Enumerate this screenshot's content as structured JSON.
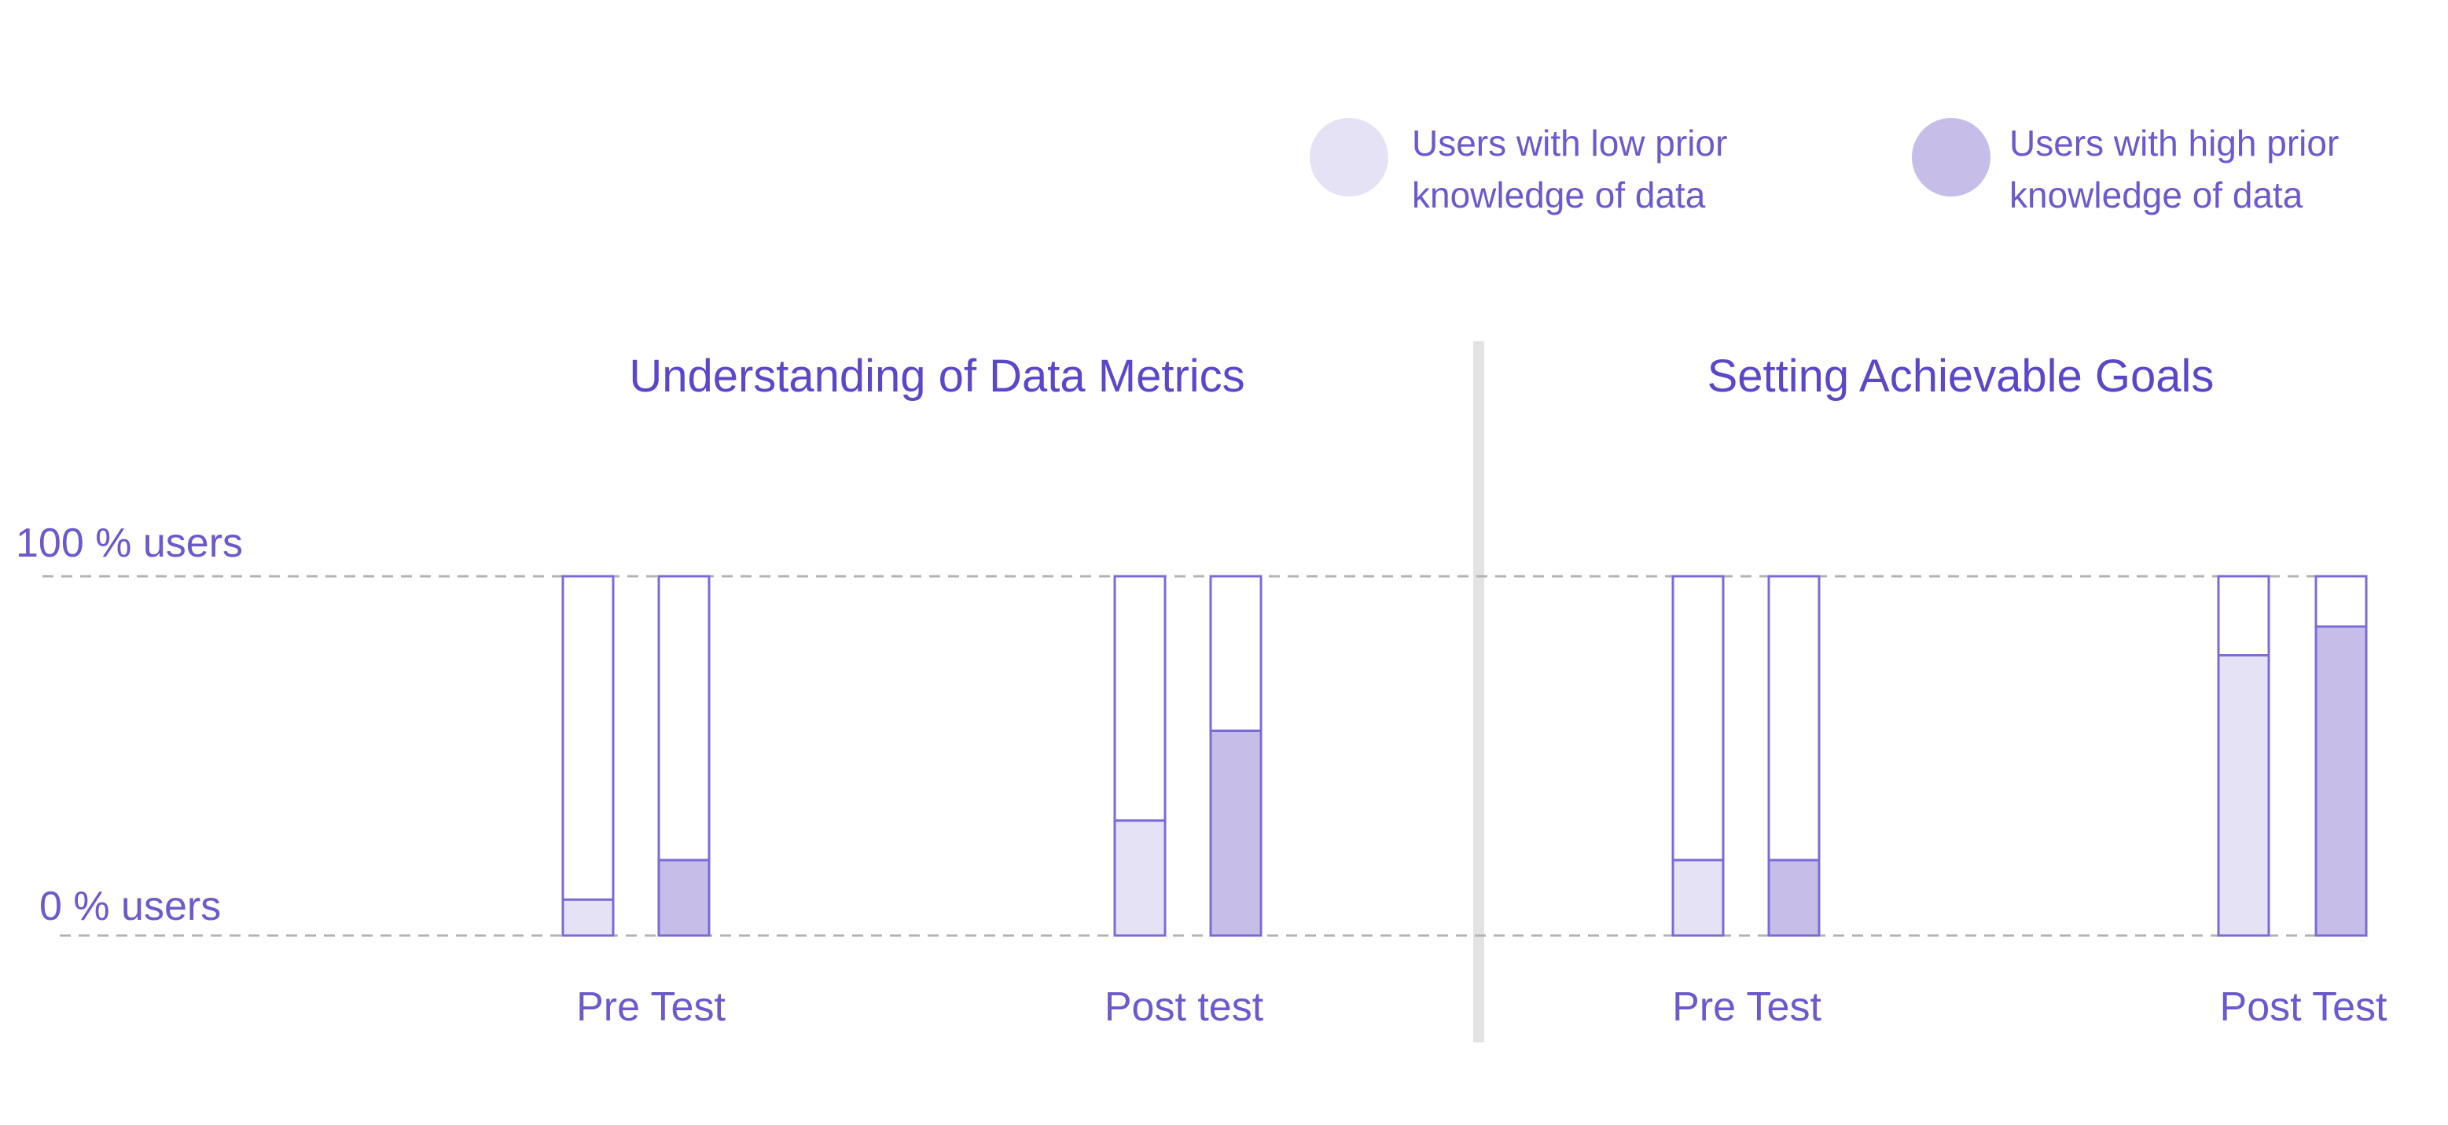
{
  "colors": {
    "text": "#6a5acd",
    "title": "#5b47c9",
    "bar_outline": "#7b6bd6",
    "low_fill": "#e6e2f6",
    "high_fill": "#c6bde9",
    "gridline": "#b3b3b3",
    "divider": "#e3e3e3"
  },
  "legend": [
    {
      "line1": "Users with low prior",
      "line2": "knowledge of data",
      "color": "#e6e2f6"
    },
    {
      "line1": "Users with high prior",
      "line2": "knowledge of data",
      "color": "#c6bde9"
    }
  ],
  "axis": {
    "top_label": "100 % users",
    "bottom_label": "0 % users"
  },
  "chart_data": [
    {
      "type": "bar",
      "title": "Understanding of Data Metrics",
      "categories": [
        "Pre Test",
        "Post test"
      ],
      "series": [
        {
          "name": "Users with low prior knowledge of data",
          "values": [
            10,
            32
          ]
        },
        {
          "name": "Users with high prior knowledge of data",
          "values": [
            21,
            57
          ]
        }
      ],
      "ylim": [
        0,
        100
      ],
      "grid": true
    },
    {
      "type": "bar",
      "title": "Setting Achievable Goals",
      "categories": [
        "Pre Test",
        "Post Test"
      ],
      "series": [
        {
          "name": "Users with low prior knowledge of data",
          "values": [
            21,
            78
          ]
        },
        {
          "name": "Users with high prior knowledge of data",
          "values": [
            21,
            86
          ]
        }
      ],
      "ylim": [
        0,
        100
      ],
      "grid": true
    }
  ]
}
